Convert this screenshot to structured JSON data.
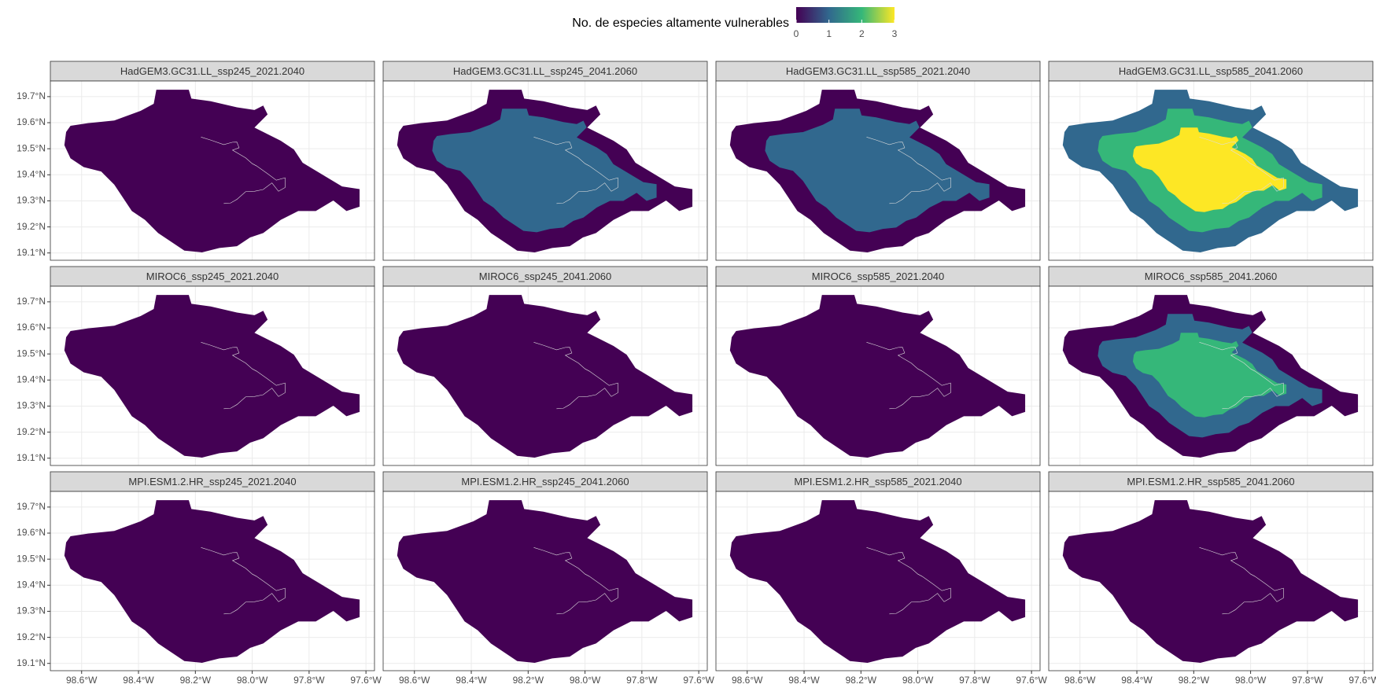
{
  "chart_data": {
    "type": "facet-map",
    "legend": {
      "title": "No. de especies altamente vulnerables",
      "colors": [
        "#440154",
        "#31688e",
        "#35b779",
        "#fde725"
      ],
      "lim": [
        0,
        3
      ],
      "ticks": [
        0,
        1,
        2,
        3
      ]
    },
    "xlim": [
      -98.71,
      -97.57
    ],
    "ylim": [
      19.072,
      19.76
    ],
    "xticks": [
      {
        "value": -98.6,
        "label": "98.6°W"
      },
      {
        "value": -98.4,
        "label": "98.4°W"
      },
      {
        "value": -98.2,
        "label": "98.2°W"
      },
      {
        "value": -98.0,
        "label": "98.0°W"
      },
      {
        "value": -97.8,
        "label": "97.8°W"
      },
      {
        "value": -97.6,
        "label": "97.6°W"
      }
    ],
    "yticks": [
      {
        "value": 19.1,
        "label": "19.1°N"
      },
      {
        "value": 19.2,
        "label": "19.2°N"
      },
      {
        "value": 19.3,
        "label": "19.3°N"
      },
      {
        "value": 19.4,
        "label": "19.4°N"
      },
      {
        "value": 19.5,
        "label": "19.5°N"
      },
      {
        "value": 19.6,
        "label": "19.6°N"
      },
      {
        "value": 19.7,
        "label": "19.7°N"
      }
    ],
    "grid": true,
    "panels": [
      {
        "title": "HadGEM3.GC31.LL_ssp245_2021.2040",
        "levels": [
          0
        ]
      },
      {
        "title": "HadGEM3.GC31.LL_ssp245_2041.2060",
        "levels": [
          0,
          1
        ]
      },
      {
        "title": "HadGEM3.GC31.LL_ssp585_2021.2040",
        "levels": [
          0,
          1
        ]
      },
      {
        "title": "HadGEM3.GC31.LL_ssp585_2041.2060",
        "levels": [
          1,
          2,
          3
        ]
      },
      {
        "title": "MIROC6_ssp245_2021.2040",
        "levels": [
          0
        ]
      },
      {
        "title": "MIROC6_ssp245_2041.2060",
        "levels": [
          0
        ]
      },
      {
        "title": "MIROC6_ssp585_2021.2040",
        "levels": [
          0
        ]
      },
      {
        "title": "MIROC6_ssp585_2041.2060",
        "levels": [
          0,
          1,
          2
        ]
      },
      {
        "title": "MPI.ESM1.2.HR_ssp245_2021.2040",
        "levels": [
          0
        ]
      },
      {
        "title": "MPI.ESM1.2.HR_ssp245_2041.2060",
        "levels": [
          0
        ]
      },
      {
        "title": "MPI.ESM1.2.HR_ssp585_2021.2040",
        "levels": [
          0
        ]
      },
      {
        "title": "MPI.ESM1.2.HR_ssp585_2041.2060",
        "levels": [
          0
        ]
      }
    ]
  }
}
